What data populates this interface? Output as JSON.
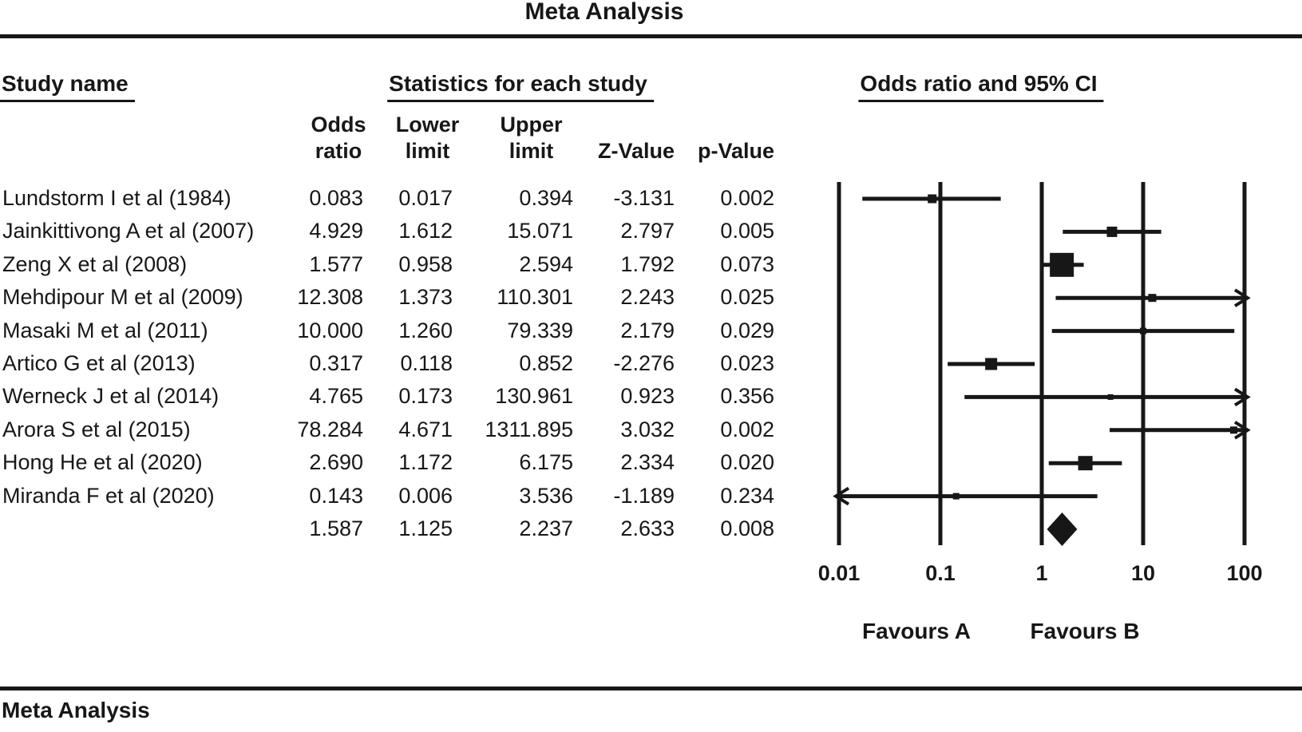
{
  "title": "Meta Analysis",
  "footer": "Meta Analysis",
  "colors": {
    "ink": "#171717",
    "background": "#ffffff"
  },
  "headers": {
    "study": "Study name",
    "stats": "Statistics for each study",
    "plot": "Odds ratio and 95% CI",
    "columns": [
      "Odds\nratio",
      "Lower\nlimit",
      "Upper\nlimit",
      "Z-Value",
      "p-Value"
    ]
  },
  "axis": {
    "tick_labels": [
      "0.01",
      "0.1",
      "1",
      "10",
      "100"
    ],
    "favours_left": "Favours A",
    "favours_right": "Favours B"
  },
  "chart_data": {
    "type": "forest",
    "x_scale": "log10",
    "x_ticks": [
      0.01,
      0.1,
      1,
      10,
      100
    ],
    "x_tick_labels": [
      "0.01",
      "0.1",
      "1",
      "10",
      "100"
    ],
    "xlim": [
      0.01,
      100
    ],
    "grid": "vertical-lines-at-ticks",
    "studies": [
      {
        "name": "Lundstorm I et al (1984)",
        "or": "0.083",
        "lower": "0.017",
        "upper": "0.394",
        "z": "-3.131",
        "p": "0.002",
        "marker_size": 11
      },
      {
        "name": "Jainkittivong A et al (2007)",
        "or": "4.929",
        "lower": "1.612",
        "upper": "15.071",
        "z": "2.797",
        "p": "0.005",
        "marker_size": 13
      },
      {
        "name": "Zeng X et al (2008)",
        "or": "1.577",
        "lower": "0.958",
        "upper": "2.594",
        "z": "1.792",
        "p": "0.073",
        "marker_size": 30
      },
      {
        "name": "Mehdipour M et al (2009)",
        "or": "12.308",
        "lower": "1.373",
        "upper": "110.301",
        "z": "2.243",
        "p": "0.025",
        "marker_size": 10
      },
      {
        "name": "Masaki M et al (2011)",
        "or": "10.000",
        "lower": "1.260",
        "upper": "79.339",
        "z": "2.179",
        "p": "0.029",
        "marker_size": 8
      },
      {
        "name": "Artico G et al (2013)",
        "or": "0.317",
        "lower": "0.118",
        "upper": "0.852",
        "z": "-2.276",
        "p": "0.023",
        "marker_size": 15
      },
      {
        "name": "Werneck J et al (2014)",
        "or": "4.765",
        "lower": "0.173",
        "upper": "130.961",
        "z": "0.923",
        "p": "0.356",
        "marker_size": 7
      },
      {
        "name": "Arora S et al (2015)",
        "or": "78.284",
        "lower": "4.671",
        "upper": "1311.895",
        "z": "3.032",
        "p": "0.002",
        "marker_size": 9
      },
      {
        "name": "Hong He et al (2020)",
        "or": "2.690",
        "lower": "1.172",
        "upper": "6.175",
        "z": "2.334",
        "p": "0.020",
        "marker_size": 18
      },
      {
        "name": "Miranda F et al (2020)",
        "or": "0.143",
        "lower": "0.006",
        "upper": "3.536",
        "z": "-1.189",
        "p": "0.234",
        "marker_size": 8
      }
    ],
    "summary": {
      "or": "1.587",
      "lower": "1.125",
      "upper": "2.237",
      "z": "2.633",
      "p": "0.008"
    }
  }
}
